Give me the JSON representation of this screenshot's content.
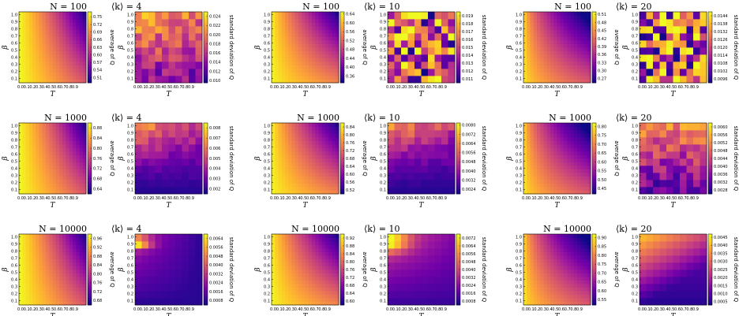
{
  "figure": {
    "description_free": true
  },
  "chart_data": {
    "type": "heatmap",
    "colormap": [
      "#0d0887",
      "#46039f",
      "#7201a8",
      "#9c179e",
      "#bd3786",
      "#d8576b",
      "#ed7953",
      "#fb9f3a",
      "#fdca26",
      "#f0f921"
    ],
    "x_ticks": [
      "0.0",
      "0.1",
      "0.2",
      "0.3",
      "0.4",
      "0.5",
      "0.6",
      "0.7",
      "0.8",
      "0.9"
    ],
    "y_ticks": [
      "0.1",
      "0.2",
      "0.3",
      "0.4",
      "0.5",
      "0.6",
      "0.7",
      "0.8",
      "0.9",
      "1.0"
    ],
    "xlabel": "T",
    "ylabel": "β",
    "cbar_avg_label": "average of Q",
    "cbar_std_label": "standard deviation of Q",
    "panels": [
      {
        "title_n": "N = 100",
        "title_k": "⟨k⟩ = 4",
        "avg_ticks": [
          "0.51",
          "0.54",
          "0.57",
          "0.60",
          "0.63",
          "0.66",
          "0.69",
          "0.72",
          "0.75"
        ],
        "std_ticks": [
          "0.010",
          "0.012",
          "0.014",
          "0.016",
          "0.018",
          "0.020",
          "0.022",
          "0.024"
        ],
        "avg_range": [
          0.49,
          0.77
        ],
        "std_range": [
          0.0095,
          0.025
        ],
        "avg_pattern": "low",
        "std_pattern": "topleft_noisy"
      },
      {
        "title_n": "N = 100",
        "title_k": "⟨k⟩ = 10",
        "avg_ticks": [
          "0.36",
          "0.40",
          "0.44",
          "0.48",
          "0.52",
          "0.56",
          "0.60",
          "0.64"
        ],
        "std_ticks": [
          "0.011",
          "0.012",
          "0.013",
          "0.014",
          "0.015",
          "0.016",
          "0.017",
          "0.018",
          "0.019"
        ],
        "avg_range": [
          0.33,
          0.65
        ],
        "std_range": [
          0.0105,
          0.0195
        ],
        "avg_pattern": "mid",
        "std_pattern": "noisy"
      },
      {
        "title_n": "N = 100",
        "title_k": "⟨k⟩ = 20",
        "avg_ticks": [
          "0.27",
          "0.30",
          "0.33",
          "0.36",
          "0.39",
          "0.42",
          "0.45",
          "0.48",
          "0.51"
        ],
        "std_ticks": [
          "0.0096",
          "0.0102",
          "0.0108",
          "0.0114",
          "0.0120",
          "0.0126",
          "0.0132",
          "0.0138",
          "0.0144"
        ],
        "avg_range": [
          0.255,
          0.52
        ],
        "std_range": [
          0.0093,
          0.0147
        ],
        "avg_pattern": "high",
        "std_pattern": "noisy"
      },
      {
        "title_n": "N = 1000",
        "title_k": "⟨k⟩ = 4",
        "avg_ticks": [
          "0.64",
          "0.68",
          "0.72",
          "0.76",
          "0.80",
          "0.84",
          "0.88"
        ],
        "std_ticks": [
          "0.002",
          "0.003",
          "0.004",
          "0.005",
          "0.006",
          "0.007",
          "0.008"
        ],
        "avg_range": [
          0.62,
          0.9
        ],
        "std_range": [
          0.0015,
          0.0085
        ],
        "avg_pattern": "low",
        "std_pattern": "topband"
      },
      {
        "title_n": "N = 1000",
        "title_k": "⟨k⟩ = 10",
        "avg_ticks": [
          "0.52",
          "0.56",
          "0.60",
          "0.64",
          "0.68",
          "0.72",
          "0.76",
          "0.80",
          "0.84"
        ],
        "std_ticks": [
          "0.0024",
          "0.0032",
          "0.0040",
          "0.0048",
          "0.0056",
          "0.0064",
          "0.0072",
          "0.0080"
        ],
        "avg_range": [
          0.5,
          0.86
        ],
        "std_range": [
          0.002,
          0.0082
        ],
        "avg_pattern": "mid",
        "std_pattern": "topband"
      },
      {
        "title_n": "N = 1000",
        "title_k": "⟨k⟩ = 20",
        "avg_ticks": [
          "0.45",
          "0.50",
          "0.55",
          "0.60",
          "0.65",
          "0.70",
          "0.75",
          "0.80"
        ],
        "std_ticks": [
          "0.0028",
          "0.0032",
          "0.0036",
          "0.0040",
          "0.0044",
          "0.0048",
          "0.0052",
          "0.0056",
          "0.0060"
        ],
        "avg_range": [
          0.42,
          0.82
        ],
        "std_range": [
          0.0026,
          0.0062
        ],
        "avg_pattern": "high",
        "std_pattern": "topband_noisy"
      },
      {
        "title_n": "N = 10000",
        "title_k": "⟨k⟩ = 4",
        "avg_ticks": [
          "0.68",
          "0.72",
          "0.76",
          "0.80",
          "0.84",
          "0.88",
          "0.92",
          "0.96"
        ],
        "std_ticks": [
          "0.0008",
          "0.0016",
          "0.0024",
          "0.0032",
          "0.0040",
          "0.0048",
          "0.0056",
          "0.0064"
        ],
        "avg_range": [
          0.66,
          0.98
        ],
        "std_range": [
          0.0004,
          0.0068
        ],
        "avg_pattern": "low",
        "std_pattern": "corner"
      },
      {
        "title_n": "N = 10000",
        "title_k": "⟨k⟩ = 10",
        "avg_ticks": [
          "0.60",
          "0.64",
          "0.68",
          "0.72",
          "0.76",
          "0.80",
          "0.84",
          "0.88",
          "0.92"
        ],
        "std_ticks": [
          "0.0008",
          "0.0016",
          "0.0024",
          "0.0032",
          "0.0040",
          "0.0048",
          "0.0056",
          "0.0064",
          "0.0072"
        ],
        "avg_range": [
          0.58,
          0.94
        ],
        "std_range": [
          0.0004,
          0.0076
        ],
        "avg_pattern": "mid",
        "std_pattern": "corner_wide"
      },
      {
        "title_n": "N = 10000",
        "title_k": "⟨k⟩ = 20",
        "avg_ticks": [
          "0.55",
          "0.60",
          "0.65",
          "0.70",
          "0.75",
          "0.80",
          "0.85",
          "0.90"
        ],
        "std_ticks": [
          "0.0005",
          "0.0010",
          "0.0015",
          "0.0020",
          "0.0025",
          "0.0030",
          "0.0035",
          "0.0040",
          "0.0045"
        ],
        "avg_range": [
          0.52,
          0.92
        ],
        "std_range": [
          0.0003,
          0.0047
        ],
        "avg_pattern": "high",
        "std_pattern": "diag"
      }
    ]
  }
}
